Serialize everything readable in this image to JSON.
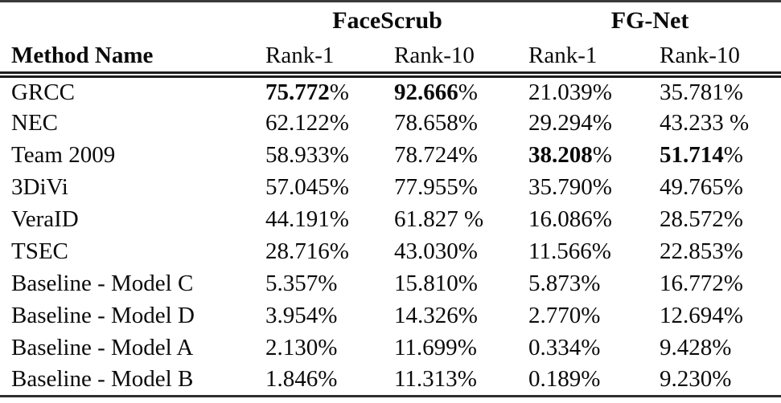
{
  "table": {
    "group_headers": [
      "FaceScrub",
      "FG-Net"
    ],
    "column_headers": [
      "Method Name",
      "Rank-1",
      "Rank-10",
      "Rank-1",
      "Rank-10"
    ],
    "rows": [
      {
        "method": "GRCC",
        "cells": [
          {
            "value": "75.772",
            "suffix": "%",
            "bold": true
          },
          {
            "value": "92.666",
            "suffix": "%",
            "bold": true
          },
          {
            "value": "21.039",
            "suffix": "%",
            "bold": false
          },
          {
            "value": "35.781",
            "suffix": "%",
            "bold": false
          }
        ]
      },
      {
        "method": "NEC",
        "cells": [
          {
            "value": "62.122",
            "suffix": "%",
            "bold": false
          },
          {
            "value": "78.658",
            "suffix": "%",
            "bold": false
          },
          {
            "value": "29.294",
            "suffix": "%",
            "bold": false
          },
          {
            "value": "43.233",
            "suffix": " %",
            "bold": false
          }
        ]
      },
      {
        "method": "Team 2009",
        "cells": [
          {
            "value": "58.933",
            "suffix": "%",
            "bold": false
          },
          {
            "value": "78.724",
            "suffix": "%",
            "bold": false
          },
          {
            "value": "38.208",
            "suffix": "%",
            "bold": true
          },
          {
            "value": "51.714",
            "suffix": "%",
            "bold": true
          }
        ]
      },
      {
        "method": "3DiVi",
        "cells": [
          {
            "value": "57.045",
            "suffix": "%",
            "bold": false
          },
          {
            "value": "77.955",
            "suffix": "%",
            "bold": false
          },
          {
            "value": "35.790",
            "suffix": "%",
            "bold": false
          },
          {
            "value": "49.765",
            "suffix": "%",
            "bold": false
          }
        ]
      },
      {
        "method": "VeraID",
        "cells": [
          {
            "value": "44.191",
            "suffix": "%",
            "bold": false
          },
          {
            "value": "61.827",
            "suffix": " %",
            "bold": false
          },
          {
            "value": "16.086",
            "suffix": "%",
            "bold": false
          },
          {
            "value": "28.572",
            "suffix": "%",
            "bold": false
          }
        ]
      },
      {
        "method": "TSEC",
        "cells": [
          {
            "value": "28.716",
            "suffix": "%",
            "bold": false
          },
          {
            "value": "43.030",
            "suffix": "%",
            "bold": false
          },
          {
            "value": "11.566",
            "suffix": "%",
            "bold": false
          },
          {
            "value": "22.853",
            "suffix": "%",
            "bold": false
          }
        ]
      },
      {
        "method": "Baseline - Model C",
        "cells": [
          {
            "value": "5.357",
            "suffix": "%",
            "bold": false
          },
          {
            "value": "15.810",
            "suffix": "%",
            "bold": false
          },
          {
            "value": "5.873",
            "suffix": "%",
            "bold": false
          },
          {
            "value": "16.772",
            "suffix": "%",
            "bold": false
          }
        ]
      },
      {
        "method": "Baseline - Model D",
        "cells": [
          {
            "value": "3.954",
            "suffix": "%",
            "bold": false
          },
          {
            "value": "14.326",
            "suffix": "%",
            "bold": false
          },
          {
            "value": "2.770",
            "suffix": "%",
            "bold": false
          },
          {
            "value": "12.694",
            "suffix": "%",
            "bold": false
          }
        ]
      },
      {
        "method": "Baseline - Model A",
        "cells": [
          {
            "value": "2.130",
            "suffix": "%",
            "bold": false
          },
          {
            "value": "11.699",
            "suffix": "%",
            "bold": false
          },
          {
            "value": "0.334",
            "suffix": "%",
            "bold": false
          },
          {
            "value": "9.428",
            "suffix": "%",
            "bold": false
          }
        ]
      },
      {
        "method": "Baseline - Model B",
        "cells": [
          {
            "value": "1.846",
            "suffix": "%",
            "bold": false
          },
          {
            "value": "11.313",
            "suffix": "%",
            "bold": false
          },
          {
            "value": "0.189",
            "suffix": "%",
            "bold": false
          },
          {
            "value": "9.230",
            "suffix": "%",
            "bold": false
          }
        ]
      }
    ]
  }
}
